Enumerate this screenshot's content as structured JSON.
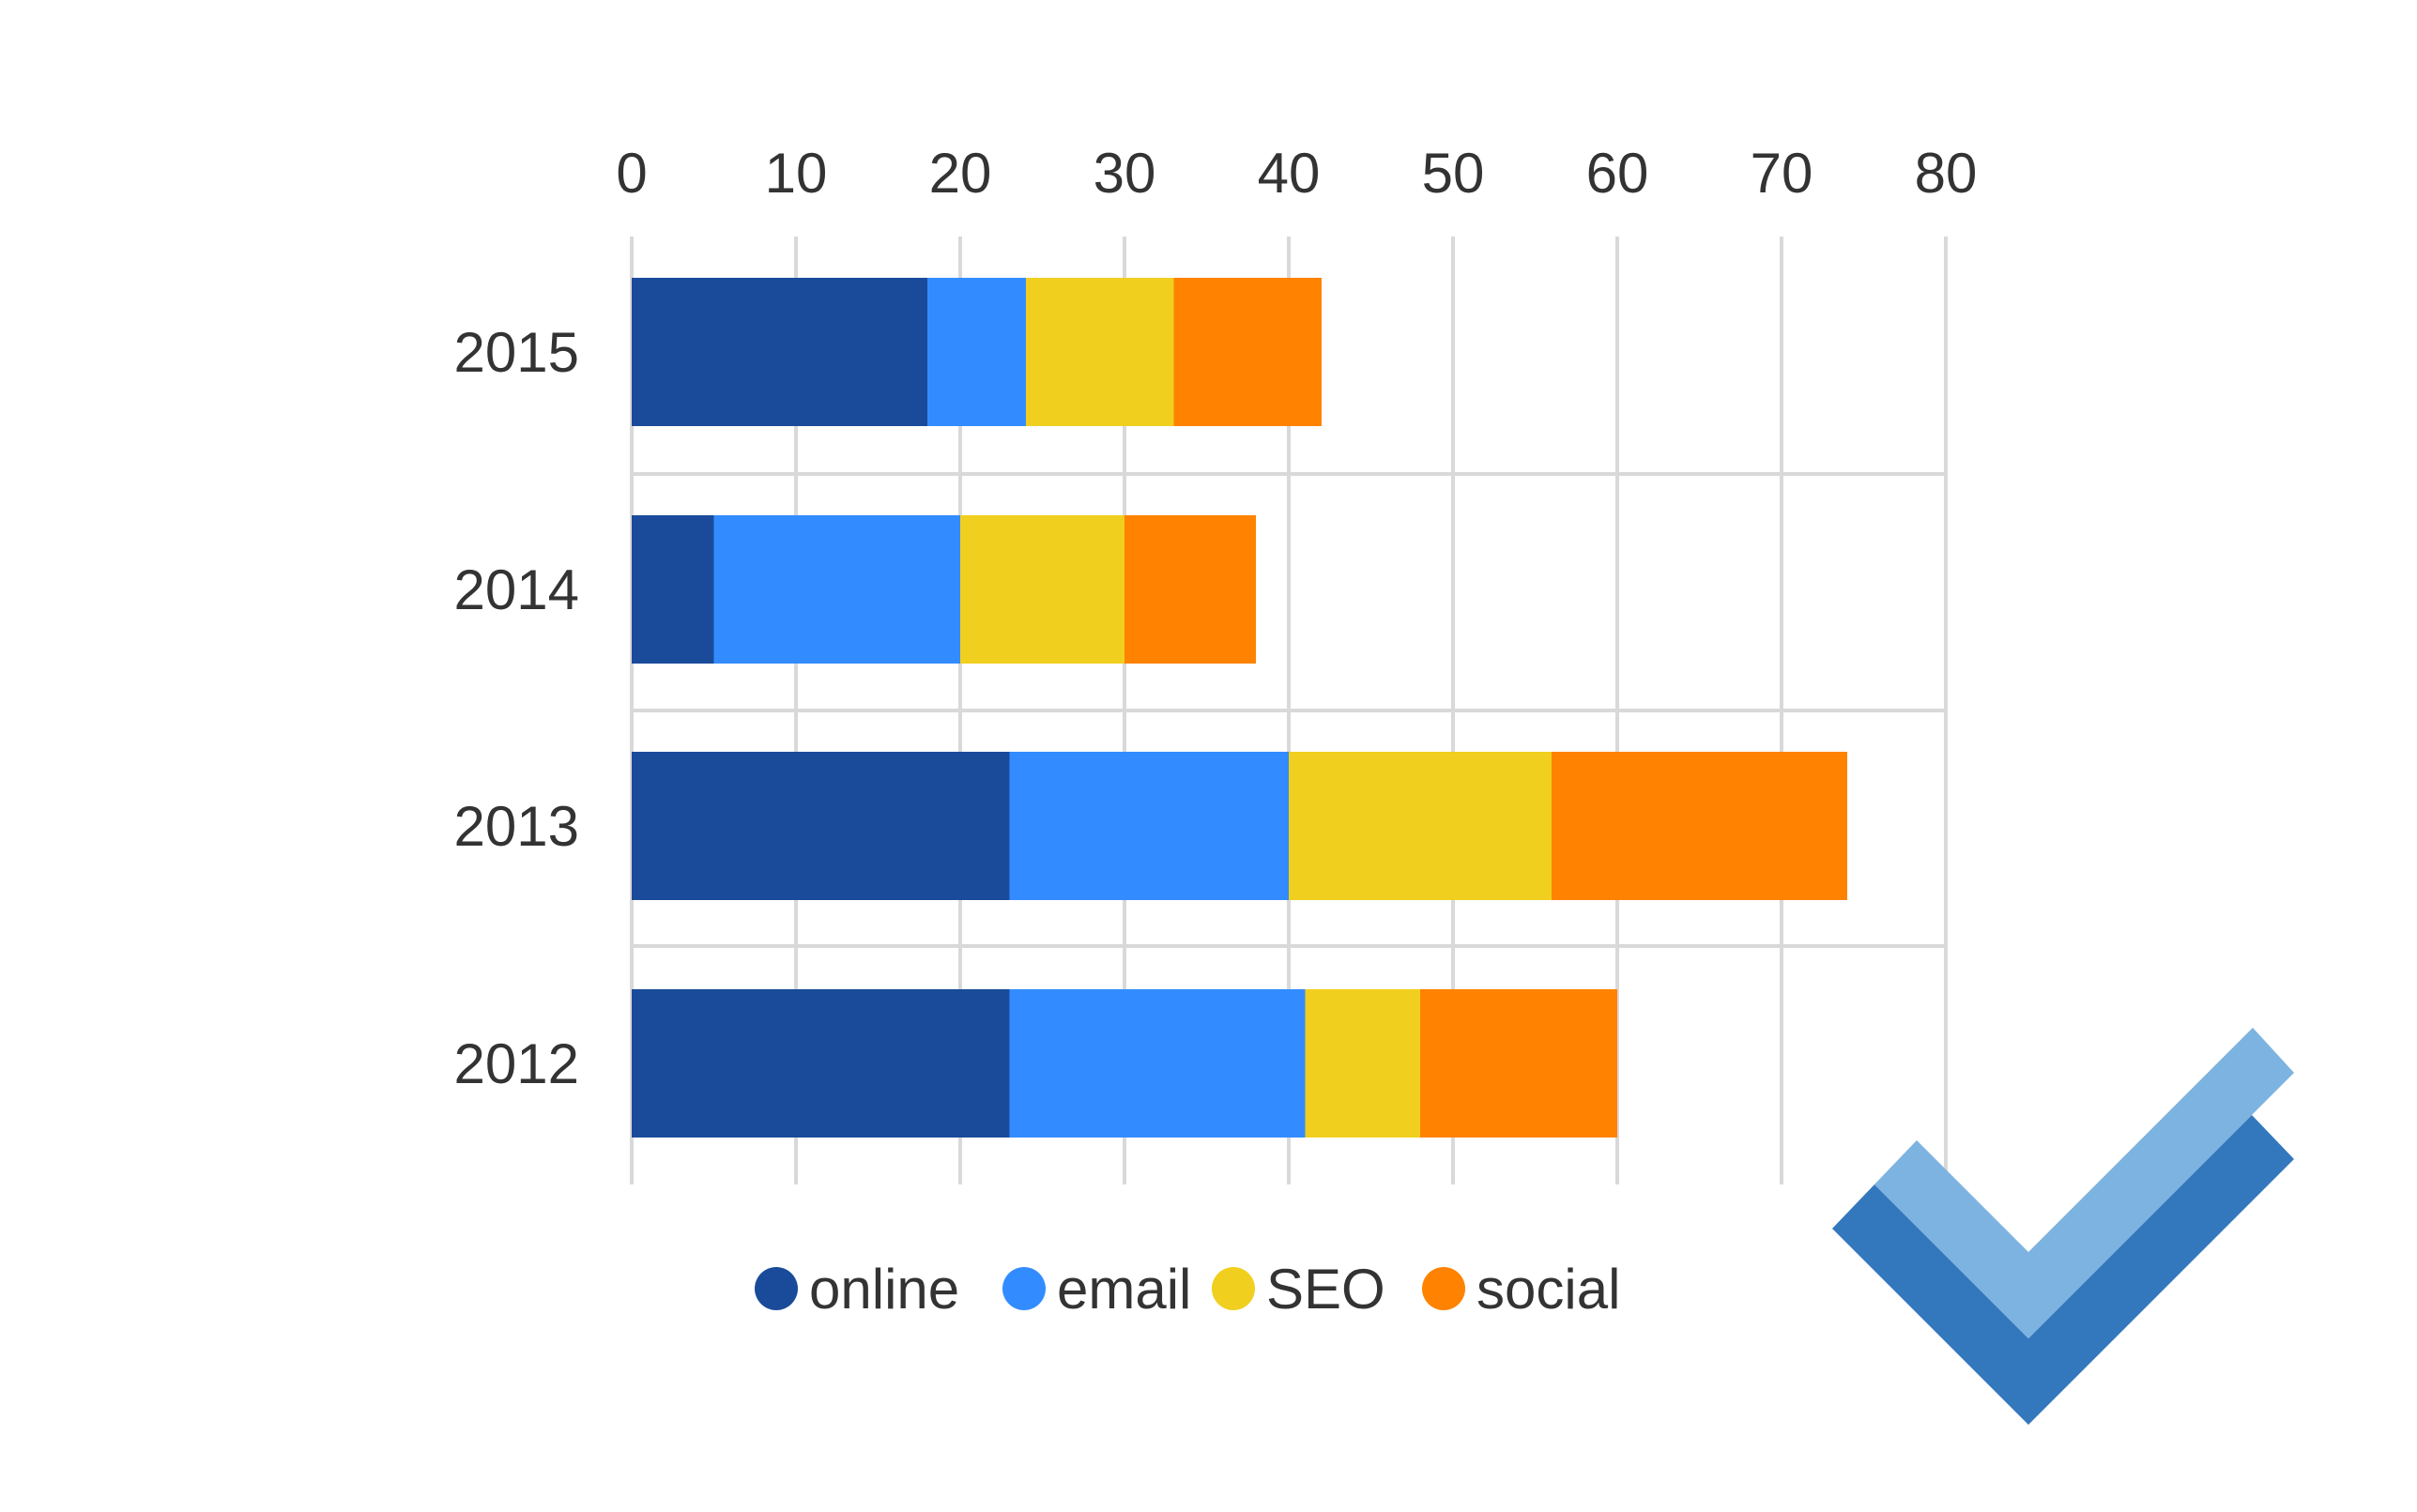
{
  "chart_data": {
    "type": "bar",
    "orientation": "horizontal",
    "stacked": true,
    "categories": [
      "2015",
      "2014",
      "2013",
      "2012"
    ],
    "series": [
      {
        "name": "online",
        "values": [
          18,
          5,
          23,
          23
        ],
        "color": "#1a4b9a"
      },
      {
        "name": "email",
        "values": [
          6,
          15,
          17,
          18
        ],
        "color": "#338cff"
      },
      {
        "name": "SEO",
        "values": [
          9,
          10,
          16,
          7
        ],
        "color": "#f0cf1f"
      },
      {
        "name": "social",
        "values": [
          9,
          8,
          18,
          12
        ],
        "color": "#ff8200"
      }
    ],
    "x_ticks": [
      "0",
      "10",
      "20",
      "30",
      "40",
      "50",
      "60",
      "70",
      "80"
    ],
    "xlim": [
      0,
      80
    ],
    "x_axis_position": "top",
    "grid": true,
    "legend_position": "bottom",
    "title": "",
    "xlabel": "",
    "ylabel": ""
  },
  "decoration": {
    "icon": "checkmark-icon",
    "colors": {
      "light": "#7db3e0",
      "dark": "#3378bd"
    }
  }
}
